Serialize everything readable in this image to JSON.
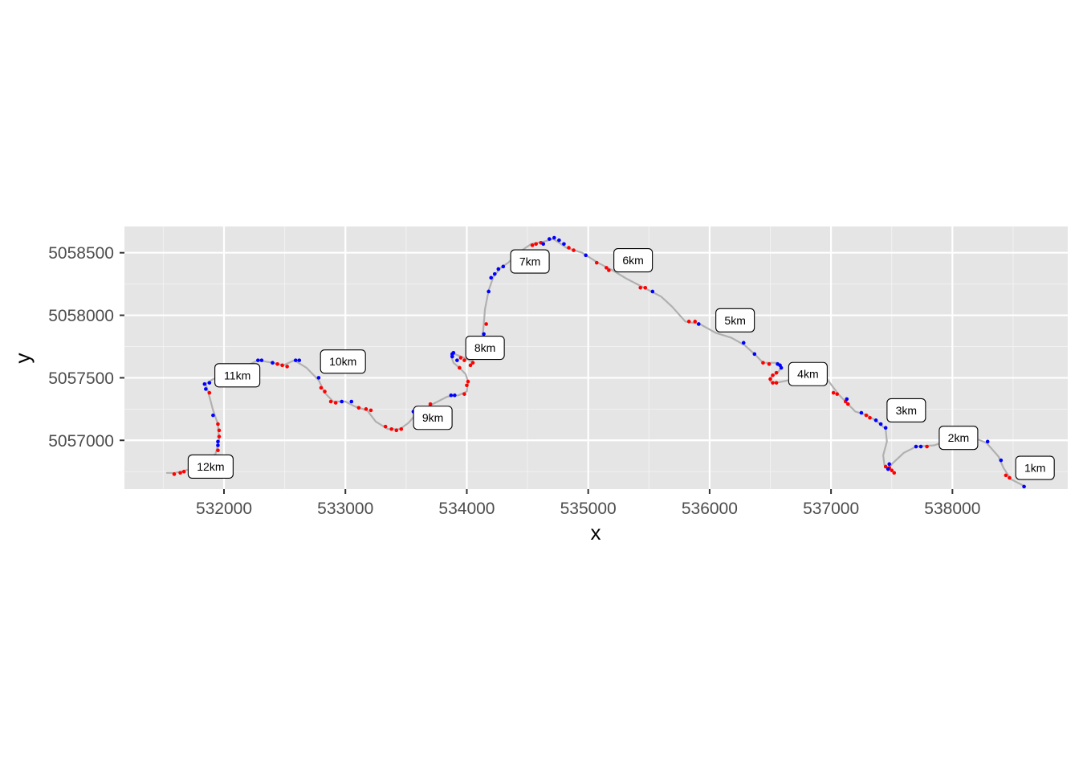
{
  "chart_data": {
    "type": "scatter",
    "title": "",
    "xlabel": "x",
    "ylabel": "y",
    "xlim": [
      531180,
      538950
    ],
    "ylim": [
      5056610,
      5058710
    ],
    "x_ticks": [
      532000,
      533000,
      534000,
      535000,
      536000,
      537000,
      538000
    ],
    "x_tick_labels": [
      "532000",
      "533000",
      "534000",
      "535000",
      "536000",
      "537000",
      "538000"
    ],
    "y_ticks": [
      5057000,
      5057500,
      5058000,
      5058500
    ],
    "y_tick_labels": [
      "5057000",
      "5057500",
      "5058000",
      "5058500"
    ],
    "grid": true,
    "background": "#e5e5e5",
    "grid_color": "#ffffff",
    "colors": {
      "track": "#b0b0b0",
      "red": "#ff0000",
      "blue": "#0000ff"
    },
    "track": [
      [
        538600,
        5056630
      ],
      [
        538480,
        5056690
      ],
      [
        538420,
        5056780
      ],
      [
        538380,
        5056870
      ],
      [
        538280,
        5056980
      ],
      [
        538150,
        5057030
      ],
      [
        538000,
        5057010
      ],
      [
        537850,
        5056960
      ],
      [
        537700,
        5056950
      ],
      [
        537600,
        5056900
      ],
      [
        537500,
        5056810
      ],
      [
        537470,
        5056760
      ],
      [
        537440,
        5056800
      ],
      [
        537430,
        5056880
      ],
      [
        537460,
        5056990
      ],
      [
        537450,
        5057090
      ],
      [
        537380,
        5057150
      ],
      [
        537300,
        5057200
      ],
      [
        537200,
        5057230
      ],
      [
        537130,
        5057300
      ],
      [
        537060,
        5057370
      ],
      [
        536990,
        5057460
      ],
      [
        536940,
        5057520
      ],
      [
        536800,
        5057540
      ],
      [
        536650,
        5057480
      ],
      [
        536550,
        5057460
      ],
      [
        536500,
        5057470
      ],
      [
        536510,
        5057510
      ],
      [
        536560,
        5057540
      ],
      [
        536590,
        5057580
      ],
      [
        536560,
        5057620
      ],
      [
        536440,
        5057620
      ],
      [
        536380,
        5057680
      ],
      [
        536290,
        5057760
      ],
      [
        536180,
        5057820
      ],
      [
        536050,
        5057860
      ],
      [
        535920,
        5057930
      ],
      [
        535800,
        5057950
      ],
      [
        535690,
        5058070
      ],
      [
        535600,
        5058150
      ],
      [
        535480,
        5058210
      ],
      [
        535320,
        5058290
      ],
      [
        535200,
        5058360
      ],
      [
        535080,
        5058420
      ],
      [
        534950,
        5058500
      ],
      [
        534820,
        5058540
      ],
      [
        534760,
        5058580
      ],
      [
        534710,
        5058610
      ],
      [
        534640,
        5058590
      ],
      [
        534530,
        5058570
      ],
      [
        534440,
        5058510
      ],
      [
        534340,
        5058420
      ],
      [
        534280,
        5058380
      ],
      [
        534220,
        5058310
      ],
      [
        534180,
        5058200
      ],
      [
        534150,
        5058050
      ],
      [
        534140,
        5057930
      ],
      [
        534130,
        5057830
      ],
      [
        534100,
        5057740
      ],
      [
        534040,
        5057630
      ],
      [
        533980,
        5057660
      ],
      [
        533900,
        5057690
      ],
      [
        533870,
        5057680
      ],
      [
        533890,
        5057620
      ],
      [
        533940,
        5057580
      ],
      [
        533990,
        5057530
      ],
      [
        534010,
        5057470
      ],
      [
        534000,
        5057390
      ],
      [
        533930,
        5057360
      ],
      [
        533840,
        5057350
      ],
      [
        533720,
        5057290
      ],
      [
        533600,
        5057230
      ],
      [
        533520,
        5057140
      ],
      [
        533450,
        5057090
      ],
      [
        533350,
        5057090
      ],
      [
        533250,
        5057150
      ],
      [
        533180,
        5057240
      ],
      [
        533080,
        5057270
      ],
      [
        533000,
        5057310
      ],
      [
        532900,
        5057310
      ],
      [
        532830,
        5057380
      ],
      [
        532780,
        5057480
      ],
      [
        532680,
        5057580
      ],
      [
        532580,
        5057640
      ],
      [
        532490,
        5057600
      ],
      [
        532400,
        5057620
      ],
      [
        532280,
        5057640
      ],
      [
        532150,
        5057580
      ],
      [
        532020,
        5057530
      ],
      [
        531910,
        5057490
      ],
      [
        531850,
        5057450
      ],
      [
        531880,
        5057350
      ],
      [
        531910,
        5057240
      ],
      [
        531950,
        5057130
      ],
      [
        531960,
        5057000
      ],
      [
        531930,
        5056890
      ],
      [
        531800,
        5056810
      ],
      [
        531720,
        5056770
      ],
      [
        531650,
        5056750
      ],
      [
        531590,
        5056740
      ],
      [
        531530,
        5056740
      ]
    ],
    "points_red": [
      [
        538440,
        5056720
      ],
      [
        538470,
        5056700
      ],
      [
        537520,
        5056740
      ],
      [
        537500,
        5056760
      ],
      [
        537480,
        5056780
      ],
      [
        537450,
        5056790
      ],
      [
        537790,
        5056950
      ],
      [
        537320,
        5057180
      ],
      [
        537290,
        5057200
      ],
      [
        537140,
        5057290
      ],
      [
        537120,
        5057310
      ],
      [
        537050,
        5057370
      ],
      [
        537020,
        5057380
      ],
      [
        536520,
        5057460
      ],
      [
        536550,
        5057460
      ],
      [
        536500,
        5057490
      ],
      [
        536520,
        5057520
      ],
      [
        536550,
        5057540
      ],
      [
        536490,
        5057610
      ],
      [
        536440,
        5057620
      ],
      [
        535880,
        5057950
      ],
      [
        535830,
        5057950
      ],
      [
        535430,
        5058220
      ],
      [
        535470,
        5058220
      ],
      [
        535170,
        5058360
      ],
      [
        535150,
        5058380
      ],
      [
        535070,
        5058420
      ],
      [
        534880,
        5058520
      ],
      [
        534840,
        5058540
      ],
      [
        534610,
        5058580
      ],
      [
        534570,
        5058570
      ],
      [
        534540,
        5058560
      ],
      [
        534160,
        5057930
      ],
      [
        534050,
        5057620
      ],
      [
        534030,
        5057600
      ],
      [
        533980,
        5057640
      ],
      [
        533950,
        5057660
      ],
      [
        533940,
        5057580
      ],
      [
        534010,
        5057470
      ],
      [
        534000,
        5057440
      ],
      [
        533980,
        5057370
      ],
      [
        533700,
        5057290
      ],
      [
        533380,
        5057090
      ],
      [
        533460,
        5057090
      ],
      [
        533420,
        5057080
      ],
      [
        533330,
        5057110
      ],
      [
        533210,
        5057240
      ],
      [
        533170,
        5057250
      ],
      [
        533110,
        5057260
      ],
      [
        532920,
        5057300
      ],
      [
        532880,
        5057310
      ],
      [
        532830,
        5057390
      ],
      [
        532800,
        5057420
      ],
      [
        532520,
        5057590
      ],
      [
        532480,
        5057600
      ],
      [
        532440,
        5057610
      ],
      [
        531880,
        5057380
      ],
      [
        531950,
        5057130
      ],
      [
        531960,
        5057080
      ],
      [
        531960,
        5057030
      ],
      [
        531950,
        5056920
      ],
      [
        531720,
        5056770
      ],
      [
        531670,
        5056750
      ],
      [
        531640,
        5056740
      ],
      [
        531590,
        5056730
      ]
    ],
    "points_blue": [
      [
        538590,
        5056630
      ],
      [
        538400,
        5056840
      ],
      [
        538290,
        5056990
      ],
      [
        537740,
        5056950
      ],
      [
        537700,
        5056950
      ],
      [
        537480,
        5056810
      ],
      [
        537470,
        5056770
      ],
      [
        537450,
        5057100
      ],
      [
        537410,
        5057130
      ],
      [
        537370,
        5057160
      ],
      [
        537250,
        5057220
      ],
      [
        537130,
        5057330
      ],
      [
        536590,
        5057580
      ],
      [
        536580,
        5057600
      ],
      [
        536560,
        5057610
      ],
      [
        536370,
        5057690
      ],
      [
        536280,
        5057780
      ],
      [
        535910,
        5057930
      ],
      [
        535530,
        5058190
      ],
      [
        534980,
        5058480
      ],
      [
        534800,
        5058570
      ],
      [
        534760,
        5058600
      ],
      [
        534720,
        5058620
      ],
      [
        534680,
        5058610
      ],
      [
        534630,
        5058570
      ],
      [
        534300,
        5058390
      ],
      [
        534260,
        5058370
      ],
      [
        534230,
        5058330
      ],
      [
        534200,
        5058300
      ],
      [
        534180,
        5058190
      ],
      [
        534140,
        5057850
      ],
      [
        533890,
        5057700
      ],
      [
        533880,
        5057670
      ],
      [
        533880,
        5057690
      ],
      [
        533920,
        5057640
      ],
      [
        533870,
        5057360
      ],
      [
        533900,
        5057360
      ],
      [
        533560,
        5057230
      ],
      [
        533050,
        5057310
      ],
      [
        532970,
        5057310
      ],
      [
        532780,
        5057500
      ],
      [
        532620,
        5057640
      ],
      [
        532590,
        5057640
      ],
      [
        532400,
        5057620
      ],
      [
        532280,
        5057640
      ],
      [
        532310,
        5057640
      ],
      [
        531880,
        5057460
      ],
      [
        531840,
        5057450
      ],
      [
        531850,
        5057410
      ],
      [
        531910,
        5057200
      ],
      [
        531950,
        5056990
      ],
      [
        531950,
        5056960
      ]
    ],
    "annotations": [
      {
        "text": "1km",
        "x": 538680,
        "y": 5056780
      },
      {
        "text": "2km",
        "x": 538050,
        "y": 5057020
      },
      {
        "text": "3km",
        "x": 537620,
        "y": 5057240
      },
      {
        "text": "4km",
        "x": 536810,
        "y": 5057530
      },
      {
        "text": "5km",
        "x": 536210,
        "y": 5057960
      },
      {
        "text": "6km",
        "x": 535370,
        "y": 5058440
      },
      {
        "text": "7km",
        "x": 534520,
        "y": 5058430
      },
      {
        "text": "8km",
        "x": 534150,
        "y": 5057740
      },
      {
        "text": "9km",
        "x": 533720,
        "y": 5057180
      },
      {
        "text": "10km",
        "x": 532980,
        "y": 5057630
      },
      {
        "text": "11km",
        "x": 532110,
        "y": 5057520
      },
      {
        "text": "12km",
        "x": 531890,
        "y": 5056790
      }
    ]
  }
}
